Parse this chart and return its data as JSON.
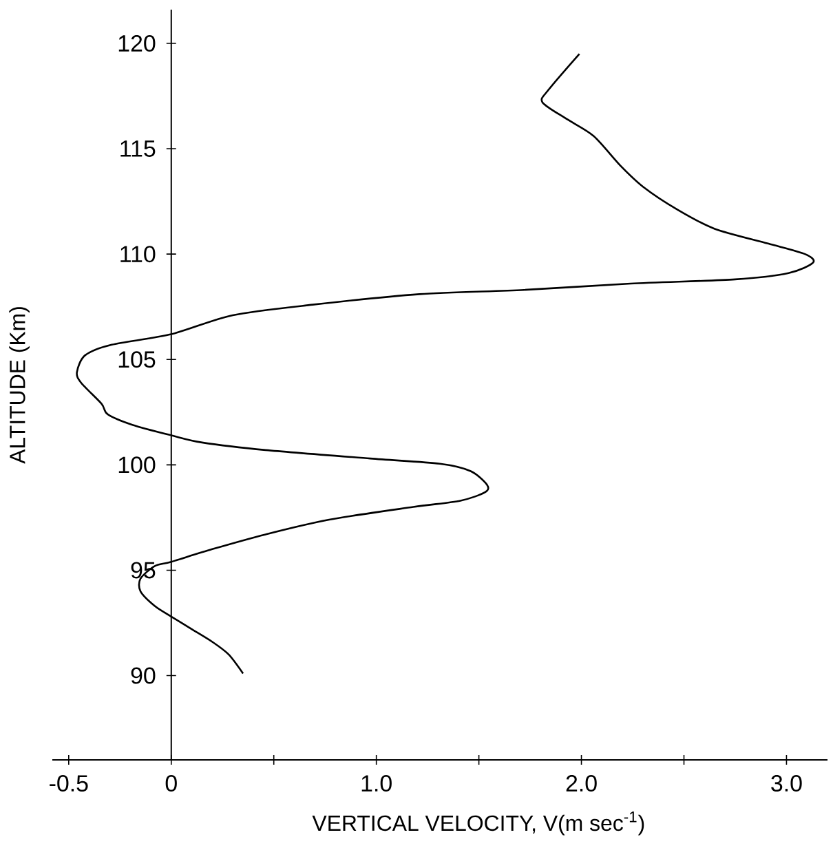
{
  "chart_data": {
    "type": "line",
    "xlabel": "VERTICAL VELOCITY, V(m sec$^{-1}$)",
    "ylabel": "ALTITUDE (Km)",
    "xlim": [
      -0.58,
      3.2
    ],
    "ylim": [
      86,
      121.6
    ],
    "xticks": [
      {
        "value": -0.5,
        "label": "-0.5"
      },
      0,
      {
        "value": 0.5,
        "label": null
      },
      {
        "value": 1,
        "label": "1.0"
      },
      {
        "value": 1.5,
        "label": null
      },
      {
        "value": 2,
        "label": "2.0"
      },
      {
        "value": 2.5,
        "label": null
      },
      {
        "value": 3,
        "label": "3.0"
      }
    ],
    "yticks": [
      90,
      95,
      100,
      105,
      110,
      115,
      120
    ],
    "marker": "none",
    "line_style": "solid",
    "series": [
      {
        "color": "#000000",
        "x": [
          0.35,
          0.28,
          0.2,
          0.1,
          0,
          -0.08,
          -0.15,
          -0.15,
          -0.08,
          0,
          0.2,
          0.46,
          0.77,
          1.18,
          1.41,
          1.53,
          1.54,
          1.46,
          1.31,
          0.97,
          0.46,
          0.15,
          0,
          -0.19,
          -0.31,
          -0.34,
          -0.44,
          -0.46,
          -0.42,
          -0.29,
          0,
          0.3,
          0.69,
          1.21,
          1.72,
          2.24,
          2.75,
          3.01,
          3.13,
          3.09,
          2.91,
          2.65,
          2.47,
          2.3,
          2.19,
          2.06,
          1.93,
          1.81,
          1.84,
          1.99
        ],
        "values": [
          90.1,
          91.0,
          91.6,
          92.2,
          92.8,
          93.3,
          94.0,
          94.6,
          95.2,
          95.4,
          96.0,
          96.7,
          97.4,
          98.0,
          98.3,
          98.7,
          99.05,
          99.7,
          100.05,
          100.3,
          100.7,
          101.06,
          101.4,
          101.9,
          102.4,
          102.9,
          103.9,
          104.4,
          105.2,
          105.7,
          106.2,
          107.1,
          107.6,
          108.1,
          108.3,
          108.6,
          108.8,
          109.1,
          109.6,
          110.0,
          110.5,
          111.2,
          112.1,
          113.2,
          114.2,
          115.6,
          116.4,
          117.2,
          117.8,
          119.5
        ]
      }
    ]
  }
}
